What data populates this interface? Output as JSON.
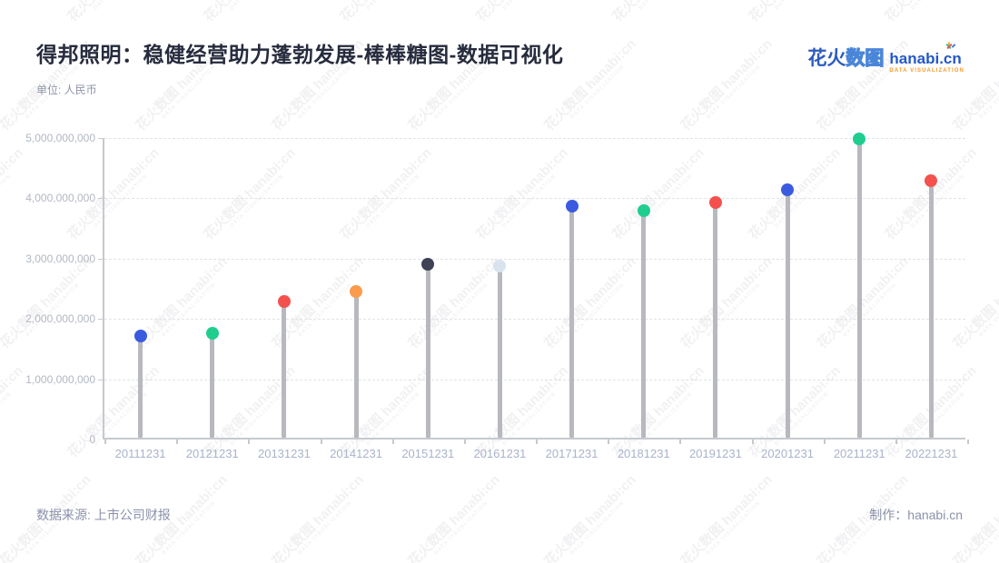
{
  "header": {
    "title": "得邦照明：稳健经营助力蓬勃发展-棒棒糖图-数据可视化",
    "unit_label": "单位: 人民币"
  },
  "logo": {
    "brand_cn_solid": "花火",
    "brand_cn_outline": "数图",
    "brand_en": "hanabi.cn",
    "tagline": "DATA VISUALIZATION"
  },
  "watermark": {
    "text": "花火数图 hanabi:cn",
    "subtext": "DATA VISUALIZATION"
  },
  "footer": {
    "source": "数据来源: 上市公司财报",
    "credit": "制作：hanabi.cn"
  },
  "chart_data": {
    "type": "bar",
    "subtype": "lollipop",
    "categories": [
      "20111231",
      "20121231",
      "20131231",
      "20141231",
      "20151231",
      "20161231",
      "20171231",
      "20181231",
      "20191231",
      "20201231",
      "20211231",
      "20221231"
    ],
    "values": [
      1715000000,
      1755000000,
      2290000000,
      2455000000,
      2910000000,
      2880000000,
      3870000000,
      3795000000,
      3930000000,
      4140000000,
      4985000000,
      4290000000
    ],
    "point_colors": [
      "#3a5be0",
      "#1fce8f",
      "#f4514e",
      "#fb9b4d",
      "#3e4254",
      "#d9e2ef",
      "#3a5be0",
      "#1fce8f",
      "#f4514e",
      "#3a5be0",
      "#1fce8f",
      "#f4514e"
    ],
    "stem_color": "#b7b9be",
    "title": "得邦照明：稳健经营助力蓬勃发展-棒棒糖图-数据可视化",
    "xlabel": "",
    "ylabel": "单位: 人民币",
    "ylim": [
      0,
      5000000000
    ],
    "ytick_interval": 1000000000,
    "ytick_labels": [
      "0",
      "1,000,000,000",
      "2,000,000,000",
      "3,000,000,000",
      "4,000,000,000",
      "5,000,000,000"
    ],
    "grid": "horizontal-dashed",
    "legend": "none"
  }
}
